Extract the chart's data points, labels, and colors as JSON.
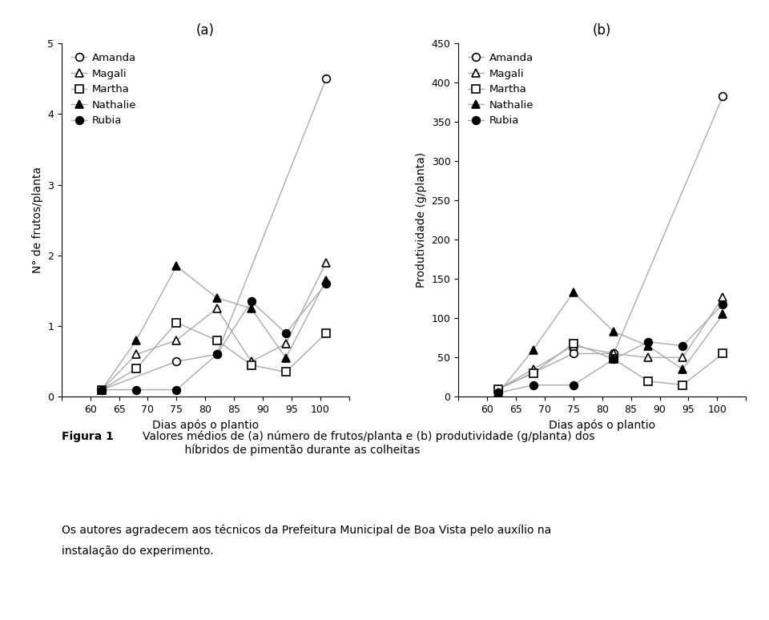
{
  "x": [
    62,
    68,
    75,
    82,
    88,
    94,
    101
  ],
  "panel_a": {
    "title": "(a)",
    "ylabel": "N° de frutos/planta",
    "xlabel": "Dias após o plantio",
    "ylim": [
      0,
      5
    ],
    "yticks": [
      0,
      1,
      2,
      3,
      4,
      5
    ],
    "xlim": [
      55,
      105
    ],
    "xticks": [
      55,
      60,
      65,
      70,
      75,
      80,
      85,
      90,
      95,
      100,
      105
    ],
    "Amanda": [
      0.1,
      null,
      0.5,
      0.6,
      null,
      null,
      4.5
    ],
    "Magali": [
      0.1,
      0.6,
      0.8,
      1.25,
      0.5,
      0.75,
      1.9
    ],
    "Martha": [
      0.1,
      0.4,
      1.05,
      0.8,
      0.45,
      0.35,
      0.9
    ],
    "Nathalie": [
      0.1,
      0.8,
      1.85,
      1.4,
      1.25,
      0.55,
      1.65
    ],
    "Rubia": [
      0.1,
      0.1,
      0.1,
      0.6,
      1.35,
      0.9,
      1.6
    ]
  },
  "panel_b": {
    "title": "(b)",
    "ylabel": "Produtividade (g/planta)",
    "xlabel": "Dias após o plantio",
    "ylim": [
      0,
      450
    ],
    "yticks": [
      0,
      50,
      100,
      150,
      200,
      250,
      300,
      350,
      400,
      450
    ],
    "xlim": [
      55,
      105
    ],
    "xticks": [
      55,
      60,
      65,
      70,
      75,
      80,
      85,
      90,
      95,
      100,
      105
    ],
    "Amanda": [
      10,
      null,
      55,
      55,
      null,
      null,
      383
    ],
    "Magali": [
      10,
      35,
      65,
      55,
      50,
      50,
      127
    ],
    "Martha": [
      10,
      30,
      68,
      48,
      20,
      15,
      55
    ],
    "Nathalie": [
      5,
      60,
      133,
      83,
      65,
      35,
      105
    ],
    "Rubia": [
      5,
      15,
      15,
      48,
      70,
      65,
      118
    ]
  },
  "series": [
    {
      "name": "Amanda",
      "marker": "o",
      "fillstyle": "none"
    },
    {
      "name": "Magali",
      "marker": "^",
      "fillstyle": "none"
    },
    {
      "name": "Martha",
      "marker": "s",
      "fillstyle": "none"
    },
    {
      "name": "Nathalie",
      "marker": "^",
      "fillstyle": "full"
    },
    {
      "name": "Rubia",
      "marker": "o",
      "fillstyle": "full"
    }
  ],
  "line_color": "#aaaaaa",
  "caption_bold": "Figura 1",
  "caption_text": "Valores médios de (a) número de frutos/planta e (b) produtividade (g/planta) dos\n            híbridos de pimentão durante as colheitas",
  "footnote_line1": "Os autores agradecem aos técnicos da Prefeitura Municipal de Boa Vista pelo auxílio na",
  "footnote_line2": "instalação do experimento."
}
